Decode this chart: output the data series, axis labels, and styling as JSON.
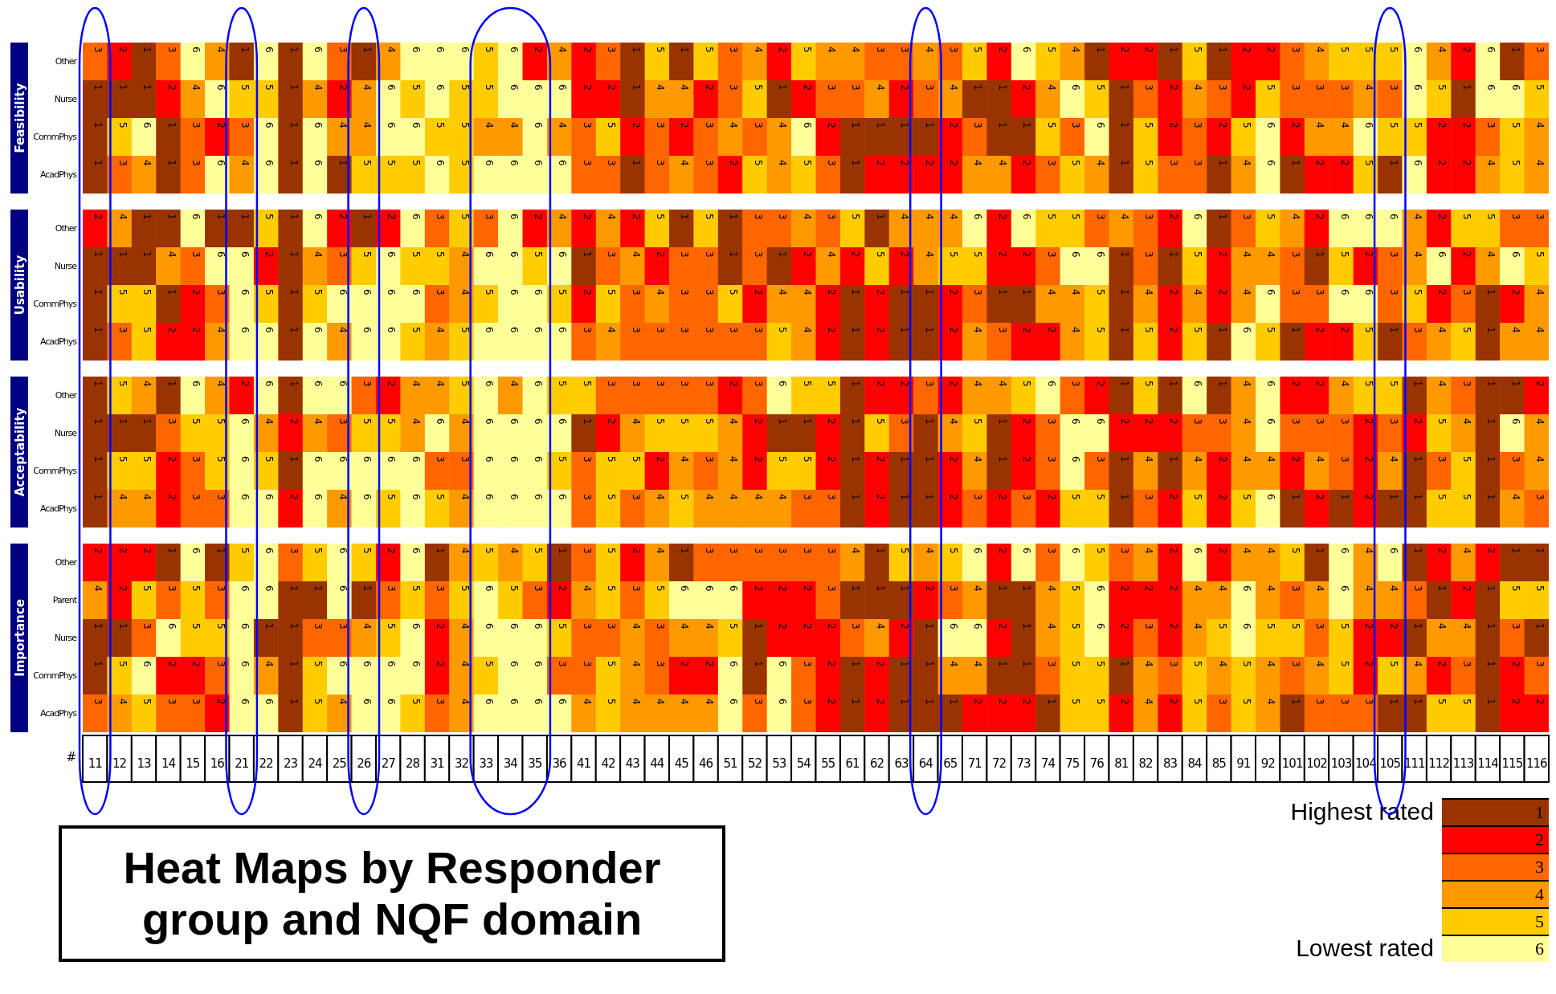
{
  "chart_data": [
    {
      "type": "heatmap",
      "ylabel": "Feasibility",
      "tick_labels": "y",
      "data_labels": true,
      "categories": [
        "11",
        "12",
        "13",
        "14",
        "15",
        "16",
        "21",
        "22",
        "23",
        "24",
        "25",
        "26",
        "27",
        "28",
        "31",
        "32",
        "33",
        "34",
        "35",
        "36",
        "41",
        "42",
        "43",
        "44",
        "45",
        "46",
        "51",
        "52",
        "53",
        "54",
        "55",
        "61",
        "62",
        "63",
        "64",
        "65",
        "71",
        "72",
        "73",
        "74",
        "75",
        "76",
        "81",
        "82",
        "83",
        "84",
        "85",
        "91",
        "92",
        "101",
        "102",
        "103",
        "104",
        "105",
        "111",
        "112",
        "113",
        "114",
        "115",
        "116"
      ],
      "y_categories": [
        "Other",
        "Nurse",
        "CommPhys",
        "AcadPhys"
      ],
      "cells": [
        [
          3,
          2,
          1,
          3,
          6,
          4,
          1,
          6,
          1,
          6,
          3,
          1,
          4,
          6,
          6,
          6,
          5,
          6,
          2,
          4,
          2,
          3,
          1,
          5,
          1,
          5,
          3,
          4,
          2,
          5,
          4,
          4,
          3,
          3,
          4,
          3,
          5,
          2,
          6,
          5,
          4,
          1,
          2,
          2,
          1,
          5,
          1,
          2,
          2,
          3,
          4,
          5,
          5,
          5,
          6,
          4,
          2,
          6,
          1,
          3
        ],
        [
          1,
          1,
          1,
          2,
          4,
          6,
          5,
          5,
          1,
          4,
          2,
          4,
          6,
          5,
          6,
          5,
          5,
          6,
          6,
          6,
          2,
          2,
          1,
          4,
          4,
          2,
          3,
          5,
          1,
          2,
          3,
          3,
          4,
          2,
          3,
          4,
          1,
          1,
          2,
          4,
          6,
          5,
          1,
          3,
          2,
          4,
          3,
          2,
          5,
          3,
          3,
          3,
          4,
          3,
          6,
          5,
          1,
          6,
          6,
          5
        ],
        [
          1,
          5,
          6,
          1,
          3,
          2,
          3,
          6,
          1,
          6,
          4,
          4,
          6,
          6,
          5,
          5,
          4,
          4,
          6,
          4,
          3,
          5,
          2,
          3,
          2,
          3,
          4,
          3,
          4,
          6,
          2,
          1,
          1,
          1,
          1,
          2,
          3,
          1,
          1,
          5,
          3,
          6,
          1,
          5,
          2,
          3,
          2,
          5,
          6,
          2,
          4,
          4,
          6,
          5,
          5,
          2,
          2,
          3,
          5,
          4
        ],
        [
          1,
          3,
          4,
          1,
          3,
          6,
          4,
          6,
          1,
          6,
          1,
          5,
          5,
          5,
          6,
          5,
          6,
          6,
          6,
          6,
          3,
          3,
          1,
          3,
          4,
          3,
          2,
          5,
          4,
          5,
          3,
          1,
          2,
          2,
          2,
          2,
          4,
          4,
          2,
          3,
          5,
          4,
          1,
          5,
          3,
          3,
          1,
          4,
          6,
          1,
          2,
          2,
          5,
          1,
          6,
          2,
          2,
          4,
          5,
          4
        ]
      ]
    },
    {
      "type": "heatmap",
      "ylabel": "Usability",
      "tick_labels": "y",
      "data_labels": true,
      "categories": [
        "11",
        "12",
        "13",
        "14",
        "15",
        "16",
        "21",
        "22",
        "23",
        "24",
        "25",
        "26",
        "27",
        "28",
        "31",
        "32",
        "33",
        "34",
        "35",
        "36",
        "41",
        "42",
        "43",
        "44",
        "45",
        "46",
        "51",
        "52",
        "53",
        "54",
        "55",
        "61",
        "62",
        "63",
        "64",
        "65",
        "71",
        "72",
        "73",
        "74",
        "75",
        "76",
        "81",
        "82",
        "83",
        "84",
        "85",
        "91",
        "92",
        "101",
        "102",
        "103",
        "104",
        "105",
        "111",
        "112",
        "113",
        "114",
        "115",
        "116"
      ],
      "y_categories": [
        "Other",
        "Nurse",
        "CommPhys",
        "AcadPhys"
      ],
      "cells": [
        [
          2,
          4,
          1,
          1,
          6,
          1,
          1,
          5,
          1,
          6,
          2,
          1,
          2,
          6,
          3,
          5,
          3,
          6,
          2,
          4,
          2,
          4,
          2,
          5,
          1,
          5,
          1,
          3,
          3,
          4,
          3,
          5,
          1,
          4,
          4,
          4,
          6,
          2,
          6,
          5,
          5,
          3,
          4,
          3,
          2,
          6,
          1,
          3,
          5,
          4,
          2,
          6,
          6,
          6,
          4,
          2,
          5,
          5,
          3,
          3
        ],
        [
          1,
          1,
          1,
          4,
          3,
          6,
          6,
          2,
          1,
          4,
          3,
          5,
          6,
          5,
          5,
          4,
          6,
          6,
          5,
          6,
          1,
          3,
          4,
          2,
          3,
          3,
          1,
          3,
          1,
          2,
          4,
          2,
          5,
          2,
          4,
          5,
          5,
          2,
          2,
          3,
          6,
          6,
          1,
          3,
          1,
          5,
          2,
          4,
          4,
          3,
          1,
          5,
          2,
          3,
          4,
          6,
          2,
          4,
          6,
          5
        ],
        [
          1,
          5,
          5,
          1,
          2,
          3,
          6,
          5,
          1,
          5,
          6,
          6,
          6,
          6,
          3,
          4,
          5,
          6,
          6,
          5,
          2,
          5,
          3,
          4,
          3,
          3,
          5,
          2,
          4,
          4,
          2,
          1,
          2,
          1,
          1,
          2,
          3,
          1,
          1,
          4,
          4,
          5,
          1,
          4,
          2,
          4,
          2,
          4,
          6,
          3,
          3,
          6,
          6,
          3,
          5,
          2,
          3,
          1,
          2,
          4
        ],
        [
          1,
          3,
          5,
          2,
          2,
          4,
          6,
          6,
          1,
          6,
          4,
          6,
          6,
          5,
          4,
          5,
          6,
          6,
          6,
          6,
          3,
          4,
          3,
          3,
          3,
          3,
          3,
          3,
          5,
          4,
          2,
          1,
          2,
          1,
          1,
          2,
          4,
          3,
          2,
          2,
          4,
          5,
          1,
          5,
          2,
          5,
          1,
          6,
          5,
          1,
          2,
          2,
          5,
          1,
          3,
          4,
          5,
          1,
          4,
          4
        ]
      ]
    },
    {
      "type": "heatmap",
      "ylabel": "Acceptability",
      "tick_labels": "y",
      "data_labels": true,
      "categories": [
        "11",
        "12",
        "13",
        "14",
        "15",
        "16",
        "21",
        "22",
        "23",
        "24",
        "25",
        "26",
        "27",
        "28",
        "31",
        "32",
        "33",
        "34",
        "35",
        "36",
        "41",
        "42",
        "43",
        "44",
        "45",
        "46",
        "51",
        "52",
        "53",
        "54",
        "55",
        "61",
        "62",
        "63",
        "64",
        "65",
        "71",
        "72",
        "73",
        "74",
        "75",
        "76",
        "81",
        "82",
        "83",
        "84",
        "85",
        "91",
        "92",
        "101",
        "102",
        "103",
        "104",
        "105",
        "111",
        "112",
        "113",
        "114",
        "115",
        "116"
      ],
      "y_categories": [
        "Other",
        "Nurse",
        "CommPhys",
        "AcadPhys"
      ],
      "cells": [
        [
          1,
          5,
          4,
          1,
          6,
          4,
          2,
          6,
          1,
          6,
          6,
          3,
          2,
          4,
          4,
          5,
          6,
          4,
          6,
          5,
          5,
          3,
          3,
          3,
          3,
          3,
          2,
          3,
          6,
          5,
          5,
          1,
          2,
          2,
          3,
          2,
          4,
          4,
          5,
          6,
          3,
          2,
          1,
          5,
          1,
          6,
          1,
          4,
          6,
          2,
          2,
          4,
          5,
          5,
          1,
          4,
          3,
          1,
          1,
          2
        ],
        [
          1,
          1,
          1,
          3,
          5,
          5,
          6,
          4,
          2,
          4,
          3,
          5,
          5,
          4,
          6,
          4,
          6,
          6,
          6,
          6,
          1,
          2,
          4,
          5,
          5,
          5,
          4,
          2,
          1,
          1,
          2,
          1,
          5,
          3,
          1,
          4,
          5,
          1,
          2,
          3,
          6,
          6,
          2,
          2,
          2,
          3,
          3,
          4,
          6,
          3,
          3,
          3,
          2,
          3,
          2,
          5,
          4,
          1,
          6,
          4
        ],
        [
          1,
          5,
          5,
          2,
          3,
          5,
          6,
          5,
          1,
          6,
          6,
          6,
          6,
          6,
          3,
          3,
          6,
          6,
          6,
          5,
          3,
          5,
          5,
          2,
          4,
          3,
          4,
          2,
          5,
          5,
          2,
          1,
          2,
          1,
          1,
          2,
          4,
          1,
          2,
          3,
          6,
          3,
          1,
          4,
          1,
          4,
          2,
          4,
          4,
          2,
          4,
          3,
          2,
          4,
          1,
          3,
          5,
          1,
          3,
          4
        ],
        [
          1,
          4,
          4,
          2,
          3,
          3,
          6,
          6,
          2,
          6,
          4,
          6,
          5,
          6,
          5,
          4,
          6,
          6,
          6,
          6,
          3,
          5,
          3,
          4,
          5,
          4,
          4,
          4,
          4,
          3,
          3,
          1,
          2,
          1,
          1,
          2,
          3,
          2,
          3,
          2,
          5,
          5,
          1,
          3,
          2,
          5,
          2,
          5,
          6,
          1,
          2,
          1,
          2,
          1,
          1,
          5,
          5,
          1,
          4,
          3
        ]
      ]
    },
    {
      "type": "heatmap",
      "ylabel": "Importance",
      "xlabel": "#",
      "title": "Heat Maps by Responder group and NQF domain",
      "data_labels": true,
      "categories": [
        "11",
        "12",
        "13",
        "14",
        "15",
        "16",
        "21",
        "22",
        "23",
        "24",
        "25",
        "26",
        "27",
        "28",
        "31",
        "32",
        "33",
        "34",
        "35",
        "36",
        "41",
        "42",
        "43",
        "44",
        "45",
        "46",
        "51",
        "52",
        "53",
        "54",
        "55",
        "61",
        "62",
        "63",
        "64",
        "65",
        "71",
        "72",
        "73",
        "74",
        "75",
        "76",
        "81",
        "82",
        "83",
        "84",
        "85",
        "91",
        "92",
        "101",
        "102",
        "103",
        "104",
        "105",
        "111",
        "112",
        "113",
        "114",
        "115",
        "116"
      ],
      "y_categories": [
        "Other",
        "Parent",
        "Nurse",
        "CommPhys",
        "AcadPhys"
      ],
      "cells": [
        [
          2,
          2,
          2,
          1,
          6,
          1,
          5,
          6,
          3,
          5,
          6,
          5,
          2,
          6,
          1,
          4,
          5,
          4,
          5,
          1,
          3,
          5,
          2,
          4,
          1,
          3,
          3,
          3,
          3,
          3,
          3,
          4,
          1,
          5,
          4,
          5,
          6,
          2,
          6,
          3,
          6,
          5,
          3,
          4,
          2,
          6,
          2,
          4,
          4,
          5,
          1,
          6,
          4,
          6,
          1,
          2,
          4,
          2,
          1,
          1
        ],
        [
          4,
          2,
          5,
          3,
          5,
          3,
          6,
          6,
          1,
          1,
          6,
          1,
          3,
          5,
          3,
          5,
          6,
          5,
          3,
          2,
          4,
          5,
          3,
          5,
          6,
          6,
          6,
          2,
          2,
          2,
          3,
          1,
          1,
          1,
          2,
          3,
          4,
          1,
          1,
          4,
          5,
          6,
          2,
          2,
          2,
          4,
          4,
          6,
          4,
          3,
          4,
          6,
          4,
          4,
          3,
          1,
          2,
          1,
          5,
          5
        ],
        [
          1,
          1,
          3,
          6,
          5,
          5,
          6,
          1,
          1,
          3,
          3,
          4,
          5,
          6,
          2,
          4,
          6,
          6,
          6,
          5,
          3,
          3,
          4,
          3,
          4,
          4,
          5,
          1,
          2,
          2,
          2,
          3,
          4,
          2,
          1,
          6,
          6,
          2,
          1,
          4,
          5,
          6,
          2,
          3,
          2,
          4,
          5,
          6,
          5,
          5,
          3,
          5,
          2,
          2,
          1,
          4,
          4,
          1,
          3,
          1
        ],
        [
          1,
          5,
          6,
          2,
          2,
          3,
          6,
          4,
          1,
          5,
          6,
          6,
          6,
          6,
          2,
          4,
          5,
          6,
          6,
          3,
          3,
          5,
          4,
          3,
          2,
          2,
          6,
          1,
          6,
          3,
          2,
          1,
          2,
          1,
          1,
          4,
          4,
          1,
          1,
          3,
          5,
          5,
          1,
          4,
          3,
          5,
          4,
          5,
          4,
          3,
          4,
          5,
          2,
          5,
          4,
          2,
          3,
          1,
          2,
          3
        ],
        [
          3,
          4,
          5,
          3,
          3,
          2,
          6,
          6,
          1,
          5,
          4,
          6,
          6,
          5,
          3,
          4,
          6,
          6,
          6,
          6,
          4,
          5,
          4,
          4,
          4,
          4,
          6,
          3,
          6,
          3,
          2,
          1,
          2,
          1,
          1,
          1,
          2,
          2,
          2,
          1,
          5,
          5,
          2,
          4,
          2,
          5,
          3,
          5,
          4,
          1,
          3,
          3,
          3,
          1,
          1,
          5,
          5,
          1,
          2,
          2
        ]
      ],
      "clim": [
        0.5,
        6.5
      ],
      "cticks": [
        1,
        2,
        3,
        4,
        5,
        6
      ],
      "colors": [
        "#993300",
        "#ff0000",
        "#ff6600",
        "#ff9900",
        "#ffcc00",
        "#ffff99"
      ],
      "annotations": [
        "Highest rated",
        "Lowest rated"
      ]
    }
  ]
}
